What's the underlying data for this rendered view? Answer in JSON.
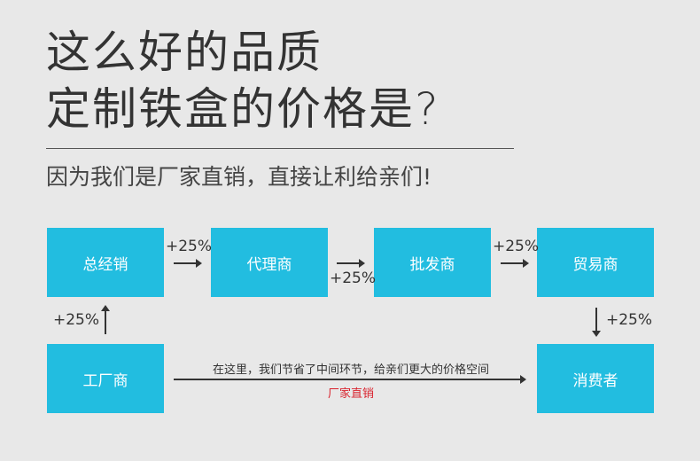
{
  "title_line1": "这么好的品质",
  "title_line2": "定制铁盒的价格是?",
  "subtitle": "因为我们是厂家直销，直接让利给亲们!",
  "nodes": {
    "general": "总经销",
    "agent": "代理商",
    "wholesale": "批发商",
    "trader": "贸易商",
    "factory": "工厂商",
    "consumer": "消费者"
  },
  "markups": [
    "+25%",
    "+25%",
    "+25%",
    "+25%",
    "+25%"
  ],
  "direct_note": "在这里，我们节省了中间环节，给亲们更大的价格空间",
  "direct_label": "厂家直销",
  "colors": {
    "box": "#22bde0",
    "accent": "#d9232e"
  }
}
